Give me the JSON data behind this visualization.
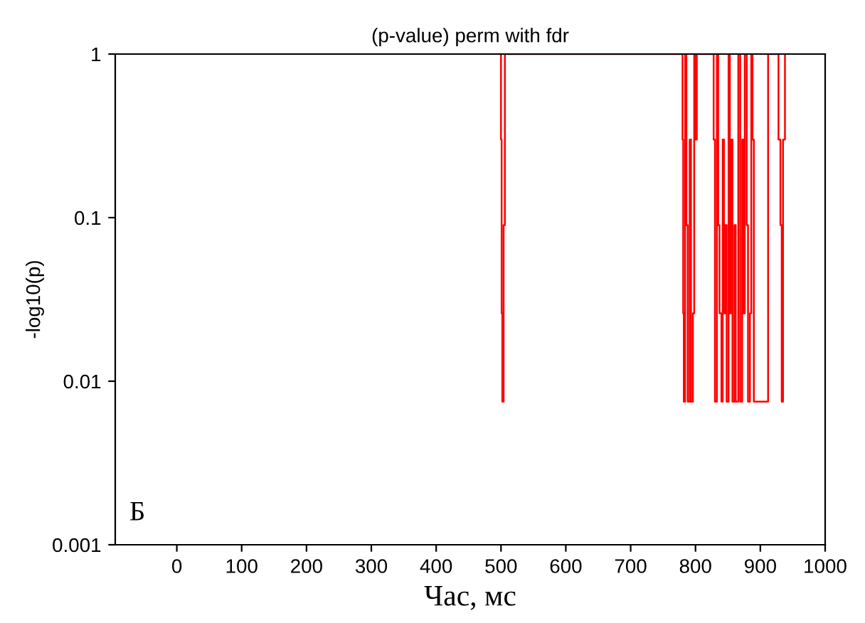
{
  "chart_data": {
    "type": "step",
    "title": "(p-value) perm with fdr",
    "xlabel": "Час, мс",
    "ylabel": "-log10(p)",
    "annotations": [
      "Б"
    ],
    "log": "y",
    "grid": false,
    "legend": false,
    "xlim": [
      -95,
      1000
    ],
    "xticks": [
      0,
      100,
      200,
      300,
      400,
      500,
      600,
      700,
      800,
      900,
      1000
    ],
    "ylim": [
      0.001,
      1
    ],
    "yticks": [
      0.001,
      0.01,
      0.1,
      1
    ],
    "series": [
      {
        "color": "#ff0000",
        "x": [
          498,
          500,
          501,
          502,
          504,
          506,
          778,
          780,
          781,
          782,
          784,
          786,
          788,
          791,
          793,
          796,
          798,
          800,
          802,
          826,
          828,
          830,
          833,
          835,
          837,
          840,
          842,
          844,
          846,
          848,
          851,
          853,
          855,
          857,
          860,
          862,
          866,
          869,
          872,
          874,
          876,
          879,
          881,
          884,
          886,
          888,
          890,
          910,
          912,
          925,
          928,
          931,
          933,
          935,
          938
        ],
        "values": [
          1,
          0.3,
          0.026,
          0.0075,
          0.09,
          1,
          1,
          0.3,
          0.026,
          0.0075,
          1,
          0.09,
          0.0075,
          0.3,
          0.0075,
          0.026,
          1,
          0.3,
          1,
          1,
          0.3,
          0.0075,
          1,
          0.09,
          0.026,
          0.0075,
          0.3,
          0.026,
          0.09,
          0.0075,
          1,
          0.026,
          0.3,
          0.0075,
          0.09,
          0.0075,
          1,
          0.0075,
          0.3,
          0.026,
          1,
          0.09,
          0.0075,
          0.026,
          1,
          0.3,
          0.0075,
          0.0075,
          1,
          1,
          0.3,
          0.09,
          0.0075,
          0.3,
          1
        ]
      }
    ]
  }
}
